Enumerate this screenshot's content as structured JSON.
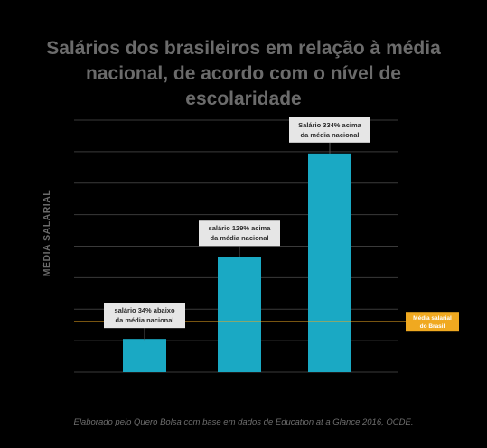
{
  "title": "Salários dos brasileiros em relação à média nacional, de acordo com o nível de escolaridade",
  "footnote": "Elaborado pelo Quero Bolsa com base em dados de Education at a Glance 2016, OCDE.",
  "colors": {
    "background": "#000000",
    "bar": "#1aa9c4",
    "reference_line": "#f0a920",
    "grid": "#3a3a3a",
    "annotation_box": "#e6e6e6",
    "text_muted": "#6b6b6b"
  },
  "chart_data": {
    "type": "bar",
    "title": "Salários dos brasileiros em relação à média nacional, de acordo com o nível de escolaridade",
    "xlabel": "",
    "ylabel": "MÉDIA SALARIAL",
    "categories": [
      "",
      "",
      ""
    ],
    "values": [
      66,
      229,
      434
    ],
    "ylim": [
      0,
      500
    ],
    "grid": true,
    "reference_line": {
      "value": 100,
      "label": [
        "Média salarial",
        "do Brasil"
      ]
    },
    "annotations": [
      [
        "salário 34% abaixo",
        "da média nacional"
      ],
      [
        "salário 129% acima",
        "da média nacional"
      ],
      [
        "Salário 334% acima",
        "da média nacional"
      ]
    ]
  }
}
